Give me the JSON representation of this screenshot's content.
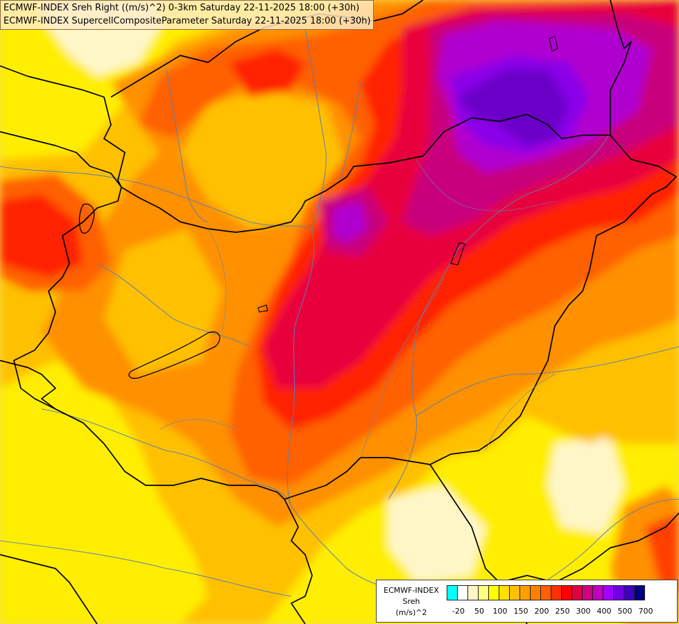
{
  "header": {
    "line1": "ECMWF-INDEX Sreh Right ((m/s)^2) 0-3km Saturday 22-11-2025 18:00 (+30h)",
    "line2": "ECMWF-INDEX SupercellCompositeParameter Saturday 22-11-2025 18:00 (+30h)"
  },
  "legend": {
    "title": "ECMWF-INDEX",
    "variable": "Sreh",
    "unit": "(m/s)^2",
    "ticks": [
      "-20",
      "50",
      "100",
      "150",
      "200",
      "250",
      "300",
      "400",
      "500",
      "700"
    ],
    "colors": [
      "#00ffff",
      "#ffffff",
      "#fff6c8",
      "#ffff80",
      "#ffff00",
      "#ffe000",
      "#ffc000",
      "#ffa000",
      "#ff8000",
      "#ff6000",
      "#ff3000",
      "#ff0000",
      "#e00040",
      "#d00080",
      "#c000c0",
      "#a000ff",
      "#7000e0",
      "#4000c0",
      "#000080"
    ]
  },
  "map": {
    "field": "Storm-relative helicity 0-3km",
    "palette": {
      "pale": "#fff6c8",
      "yellow": "#ffff00",
      "gold": "#ffe000",
      "amber": "#ffc000",
      "orange": "#ffa000",
      "dark_orange": "#ff8000",
      "red_orange": "#ff6000",
      "red": "#ff3000",
      "crimson": "#e8003c",
      "magenta": "#c8007c",
      "purple": "#b000d0",
      "violet": "#9000e8",
      "indigo": "#7000c8"
    },
    "border_color": "#000000",
    "river_color": "#5a7fb0"
  }
}
